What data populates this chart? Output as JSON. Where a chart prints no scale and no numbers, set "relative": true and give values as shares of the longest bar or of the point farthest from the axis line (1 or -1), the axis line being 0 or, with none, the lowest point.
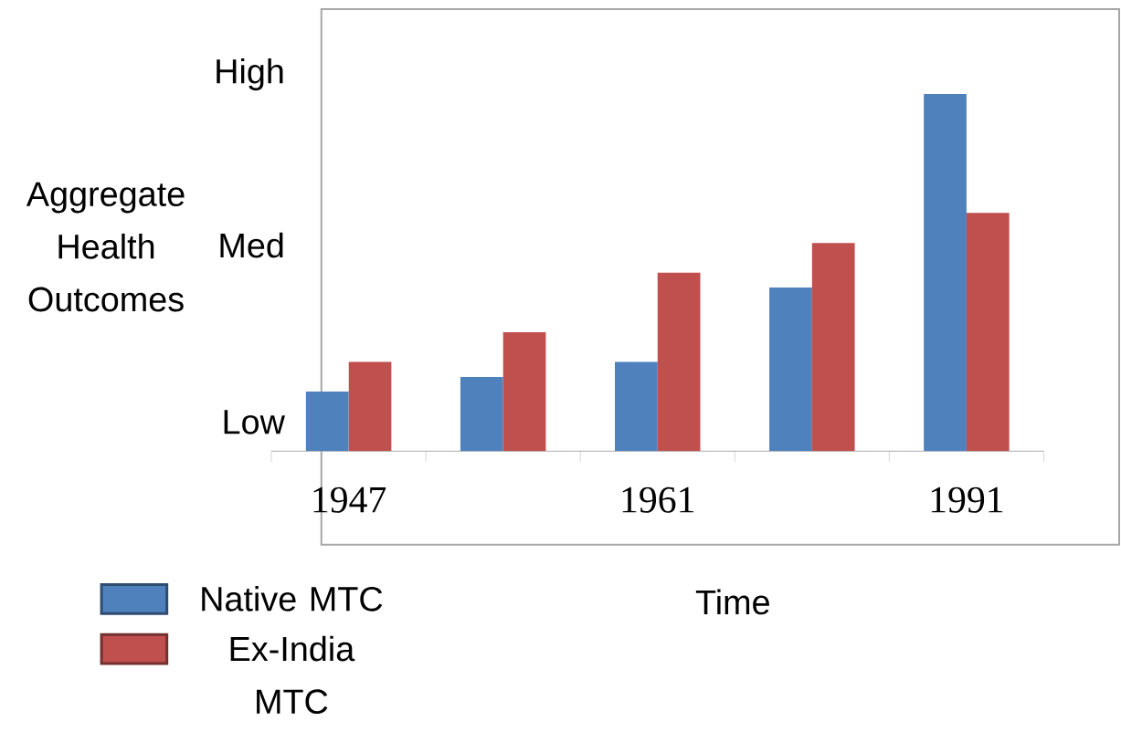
{
  "chart_data": {
    "type": "bar",
    "relative": true,
    "xlabel": "Time",
    "ylabel": "Aggregate Health Outcomes",
    "categories": [
      "1947",
      null,
      "1961",
      null,
      "1991"
    ],
    "series": [
      {
        "name": "Native MTC",
        "color": "#4f81bd",
        "values": [
          0.167,
          0.208,
          0.25,
          0.458,
          1.0
        ]
      },
      {
        "name": "Ex-India MTC",
        "color": "#c0504d",
        "values": [
          0.25,
          0.333,
          0.5,
          0.583,
          0.667
        ]
      }
    ],
    "annotations": [
      "High",
      "Med",
      "Low"
    ],
    "legend": "bottom left"
  }
}
